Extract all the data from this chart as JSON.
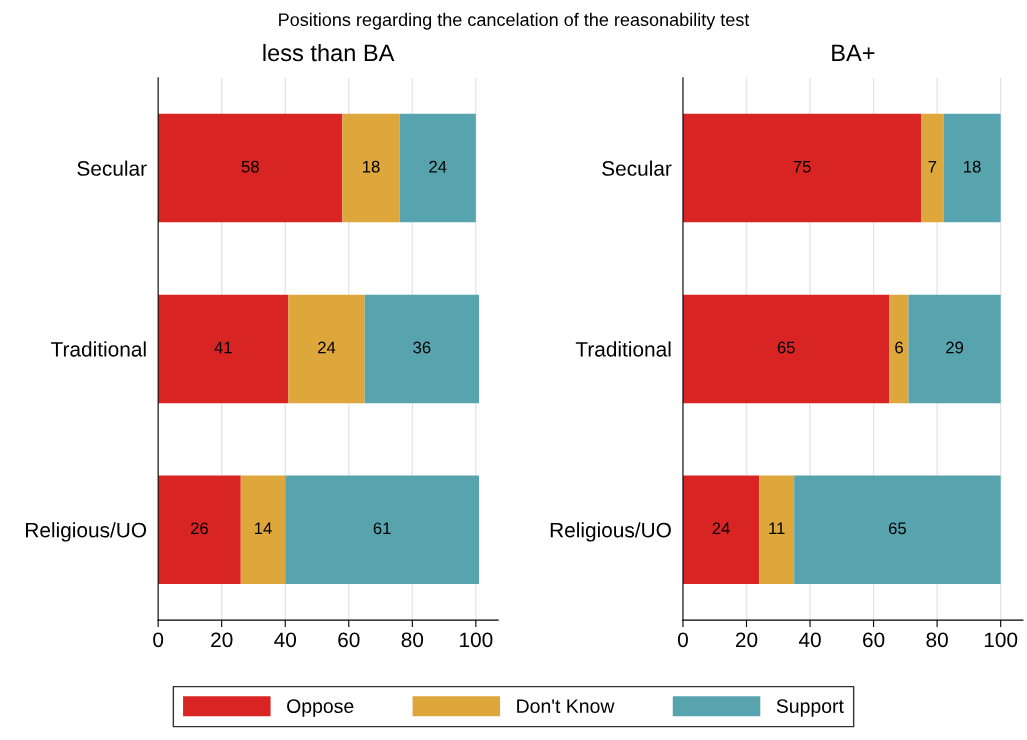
{
  "chart_data": [
    {
      "type": "bar",
      "orientation": "horizontal",
      "stacked": true,
      "title": "less than BA",
      "categories": [
        "Secular",
        "Traditional",
        "Religious/UO"
      ],
      "series": [
        {
          "name": "Oppose",
          "color": "#d92424",
          "values": [
            58,
            41,
            26
          ]
        },
        {
          "name": "Don't Know",
          "color": "#dea73c",
          "values": [
            18,
            24,
            14
          ]
        },
        {
          "name": "Support",
          "color": "#58a4ae",
          "values": [
            24,
            36,
            61
          ]
        }
      ],
      "xlim": [
        0,
        107
      ],
      "xticks": [
        0,
        20,
        40,
        60,
        80,
        100
      ],
      "grid": "x",
      "data_labels": true,
      "legend": "bottom",
      "annotations": [
        "Positions regarding the cancelation of the reasonability test"
      ]
    },
    {
      "type": "bar",
      "orientation": "horizontal",
      "stacked": true,
      "title": "BA+",
      "categories": [
        "Secular",
        "Traditional",
        "Religious/UO"
      ],
      "series": [
        {
          "color": "#d92424",
          "values": [
            75,
            65,
            24
          ]
        },
        {
          "color": "#dea73c",
          "values": [
            7,
            6,
            11
          ]
        },
        {
          "color": "#58a4ae",
          "values": [
            18,
            29,
            65
          ]
        }
      ],
      "xlim": [
        0,
        107
      ],
      "xticks": [
        0,
        20,
        40,
        60,
        80,
        100
      ],
      "grid": "x",
      "data_labels": true
    }
  ]
}
